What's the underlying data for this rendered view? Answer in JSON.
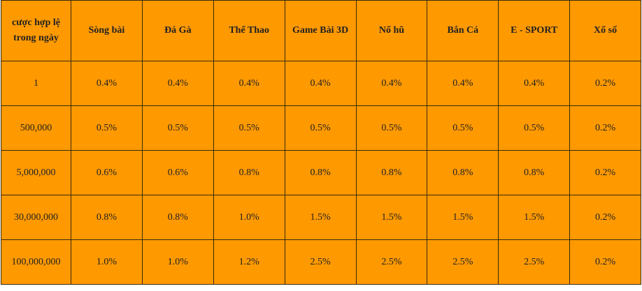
{
  "table": {
    "header": [
      "cược hợp lệ trong ngày",
      "Sòng bài",
      "Đá Gà",
      "Thể Thao",
      "Game Bài 3D",
      "Nổ hũ",
      "Bắn Cá",
      "E - SPORT",
      "Xổ số"
    ],
    "rows": [
      [
        "1",
        "0.4%",
        "0.4%",
        "0.4%",
        "0.4%",
        "0.4%",
        "0.4%",
        "0.4%",
        "0.2%"
      ],
      [
        "500,000",
        "0.5%",
        "0.5%",
        "0.5%",
        "0.5%",
        "0.5%",
        "0.5%",
        "0.5%",
        "0.2%"
      ],
      [
        "5,000,000",
        "0.6%",
        "0.6%",
        "0.8%",
        "0.8%",
        "0.8%",
        "0.8%",
        "0.8%",
        "0.2%"
      ],
      [
        "30,000,000",
        "0.8%",
        "0.8%",
        "1.0%",
        "1.5%",
        "1.5%",
        "1.5%",
        "1.5%",
        "0.2%"
      ],
      [
        "100,000,000",
        "1.0%",
        "1.0%",
        "1.2%",
        "2.5%",
        "2.5%",
        "2.5%",
        "2.5%",
        "0.2%"
      ]
    ]
  }
}
